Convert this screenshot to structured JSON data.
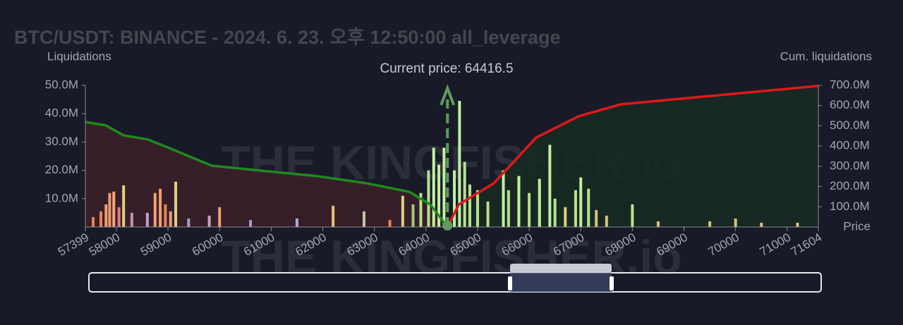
{
  "chart_data": {
    "type": "liquidation-map",
    "title": "BTC/USDT: BINANCE - 2024. 6. 23. 오후 12:50:00 all_leverage",
    "y_label": "Liquidations",
    "y2_label": "Cum. liquidations",
    "x_label": "Price",
    "annotation": "Current price: 64416.5",
    "current_price": 64416.5,
    "watermark": "THE KINGFISHER.io",
    "xlim": [
      57399,
      71604
    ],
    "xticks": [
      57399,
      58000,
      59000,
      60000,
      61000,
      62000,
      63000,
      64000,
      65000,
      66000,
      67000,
      68000,
      69000,
      70000,
      71000,
      71604
    ],
    "ylim": [
      0,
      50000000
    ],
    "yticks": [
      {
        "value": 10000000,
        "label": "10.0M"
      },
      {
        "value": 20000000,
        "label": "20.0M"
      },
      {
        "value": 30000000,
        "label": "30.0M"
      },
      {
        "value": 40000000,
        "label": "40.0M"
      },
      {
        "value": 50000000,
        "label": "50.0M"
      }
    ],
    "y2lim": [
      0,
      700000000
    ],
    "y2ticks": [
      {
        "value": 100000000,
        "label": "100.0M"
      },
      {
        "value": 200000000,
        "label": "200.0M"
      },
      {
        "value": 300000000,
        "label": "300.0M"
      },
      {
        "value": 400000000,
        "label": "400.0M"
      },
      {
        "value": 500000000,
        "label": "500.0M"
      },
      {
        "value": 600000000,
        "label": "600.0M"
      },
      {
        "value": 700000000,
        "label": "700.0M"
      }
    ],
    "bars": {
      "x": [
        57550,
        57700,
        57800,
        57870,
        57950,
        58050,
        58140,
        58300,
        58600,
        58750,
        58850,
        58950,
        59050,
        59150,
        59400,
        59800,
        60000,
        60600,
        61500,
        62200,
        62800,
        63300,
        63550,
        63750,
        63900,
        64050,
        64150,
        64250,
        64350,
        64550,
        64650,
        64750,
        64850,
        65000,
        65200,
        65500,
        65600,
        65800,
        66000,
        66200,
        66400,
        66500,
        66700,
        66900,
        67000,
        67150,
        67300,
        67500,
        68000,
        68500,
        69500,
        70000,
        70500,
        71200
      ],
      "values": [
        3500000,
        5500000,
        8000000,
        12000000,
        12500000,
        7000000,
        14700000,
        5000000,
        5000000,
        12000000,
        13500000,
        8000000,
        5500000,
        16000000,
        3000000,
        4000000,
        7000000,
        2500000,
        3000000,
        7500000,
        5500000,
        2500000,
        11000000,
        8000000,
        12000000,
        20000000,
        28000000,
        22000000,
        28000000,
        20000000,
        44500000,
        23000000,
        15000000,
        13000000,
        9000000,
        20000000,
        13000000,
        18000000,
        12000000,
        17000000,
        29000000,
        10000000,
        7000000,
        13000000,
        17500000,
        13500000,
        6000000,
        4000000,
        8000000,
        2000000,
        2000000,
        3000000,
        1500000,
        1500000
      ],
      "colors": [
        "#e8835a",
        "#e8835a",
        "#f0a070",
        "#f39b6b",
        "#f5a878",
        "#e77a7a",
        "#e0d080",
        "#c890b0",
        "#c0a0d0",
        "#f0a070",
        "#f0a070",
        "#e8835a",
        "#e8a080",
        "#e0d080",
        "#a0a0d0",
        "#c8a0c0",
        "#f0a070",
        "#a0a0d0",
        "#a8b0d8",
        "#e8c070",
        "#c0c8a0",
        "#e8835a",
        "#d8d080",
        "#a0c880",
        "#b8e090",
        "#b8e090",
        "#c0f0a0",
        "#c0f0a0",
        "#c0f0a0",
        "#c0f0a0",
        "#c0f0a0",
        "#b8e090",
        "#b8e090",
        "#b8e090",
        "#c8d890",
        "#c0f0a0",
        "#b8e090",
        "#c0f0a0",
        "#b8e090",
        "#c0f0a0",
        "#c0f0a0",
        "#b8e090",
        "#d8d080",
        "#b8e090",
        "#c0f0a0",
        "#b8e090",
        "#d8c080",
        "#d8c080",
        "#c0e090",
        "#d8c080",
        "#d8c080",
        "#d8c080",
        "#d8c080",
        "#d8c080"
      ]
    },
    "series": [
      {
        "color": "#1f8a1f",
        "fill": "#3a1f2a",
        "axis": "y2",
        "x": [
          57399,
          57796,
          58137,
          58616,
          59026,
          59846,
          61214,
          61897,
          62854,
          63675,
          64085,
          64416.5
        ],
        "values": [
          519000000,
          502000000,
          453000000,
          432000000,
          390000000,
          303000000,
          268000000,
          251000000,
          216000000,
          174000000,
          111000000,
          0
        ]
      },
      {
        "color": "#e01818",
        "fill": "#172a22",
        "axis": "y2",
        "x": [
          64416.5,
          64635,
          65315,
          66136,
          66956,
          67776,
          69417,
          71604
        ],
        "values": [
          0,
          111000000,
          216000000,
          442000000,
          547000000,
          606000000,
          645000000,
          697000000
        ]
      }
    ]
  }
}
